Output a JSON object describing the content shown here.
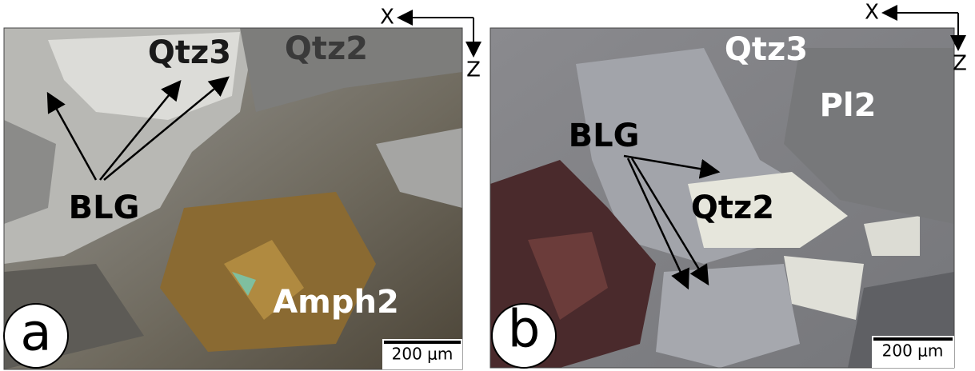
{
  "panels": [
    {
      "label": "a",
      "annotations": [
        "Qtz3",
        "Qtz2",
        "BLG",
        "Amph2"
      ],
      "scale_bar": "200 μm",
      "axes": [
        "X",
        "Z"
      ]
    },
    {
      "label": "b",
      "annotations": [
        "Qtz3",
        "Pl2",
        "BLG",
        "Qtz2"
      ],
      "scale_bar": "200 μm",
      "axes": [
        "X",
        "Z"
      ]
    }
  ]
}
